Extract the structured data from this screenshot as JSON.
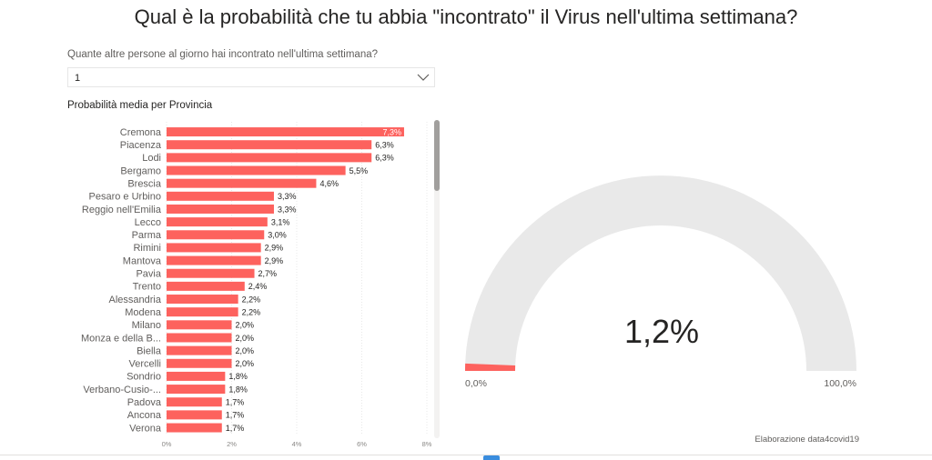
{
  "title": "Qual è la probabilità che tu abbia \"incontrato\" il Virus nell'ultima settimana?",
  "slicer": {
    "label": "Quante altre persone al giorno hai incontrato nell'ultima settimana?",
    "value": "1",
    "icon": "chevron-down-icon"
  },
  "bar_chart_title": "Probabilità media per Provincia",
  "gauge_value_label": "1,2%",
  "gauge_min_label": "0,0%",
  "gauge_max_label": "100,0%",
  "credit": "Elaborazione data4covid19",
  "colors": {
    "bar": "#fd625e",
    "gauge_track": "#e9e9e9",
    "text": "#252423"
  },
  "chart_data": [
    {
      "type": "bar",
      "orientation": "horizontal",
      "title": "Probabilità media per Provincia",
      "categories": [
        "Cremona",
        "Piacenza",
        "Lodi",
        "Bergamo",
        "Brescia",
        "Pesaro e Urbino",
        "Reggio nell'Emilia",
        "Lecco",
        "Parma",
        "Rimini",
        "Mantova",
        "Pavia",
        "Trento",
        "Alessandria",
        "Modena",
        "Milano",
        "Monza e della B...",
        "Biella",
        "Vercelli",
        "Sondrio",
        "Verbano-Cusio-...",
        "Padova",
        "Ancona",
        "Verona"
      ],
      "values": [
        7.3,
        6.3,
        6.3,
        5.5,
        4.6,
        3.3,
        3.3,
        3.1,
        3.0,
        2.9,
        2.9,
        2.7,
        2.4,
        2.2,
        2.2,
        2.0,
        2.0,
        2.0,
        2.0,
        1.8,
        1.8,
        1.7,
        1.7,
        1.7
      ],
      "value_labels": [
        "7,3%",
        "6,3%",
        "6,3%",
        "5,5%",
        "4,6%",
        "3,3%",
        "3,3%",
        "3,1%",
        "3,0%",
        "2,9%",
        "2,9%",
        "2,7%",
        "2,4%",
        "2,2%",
        "2,2%",
        "2,0%",
        "2,0%",
        "2,0%",
        "2,0%",
        "1,8%",
        "1,8%",
        "1,7%",
        "1,7%",
        "1,7%"
      ],
      "xlim": [
        0,
        8
      ],
      "xticks": [
        "0%",
        "2%",
        "4%",
        "6%",
        "8%"
      ],
      "grid": true
    },
    {
      "type": "gauge",
      "value": 1.2,
      "min": 0,
      "max": 100,
      "value_label": "1,2%",
      "min_label": "0,0%",
      "max_label": "100,0%"
    }
  ]
}
